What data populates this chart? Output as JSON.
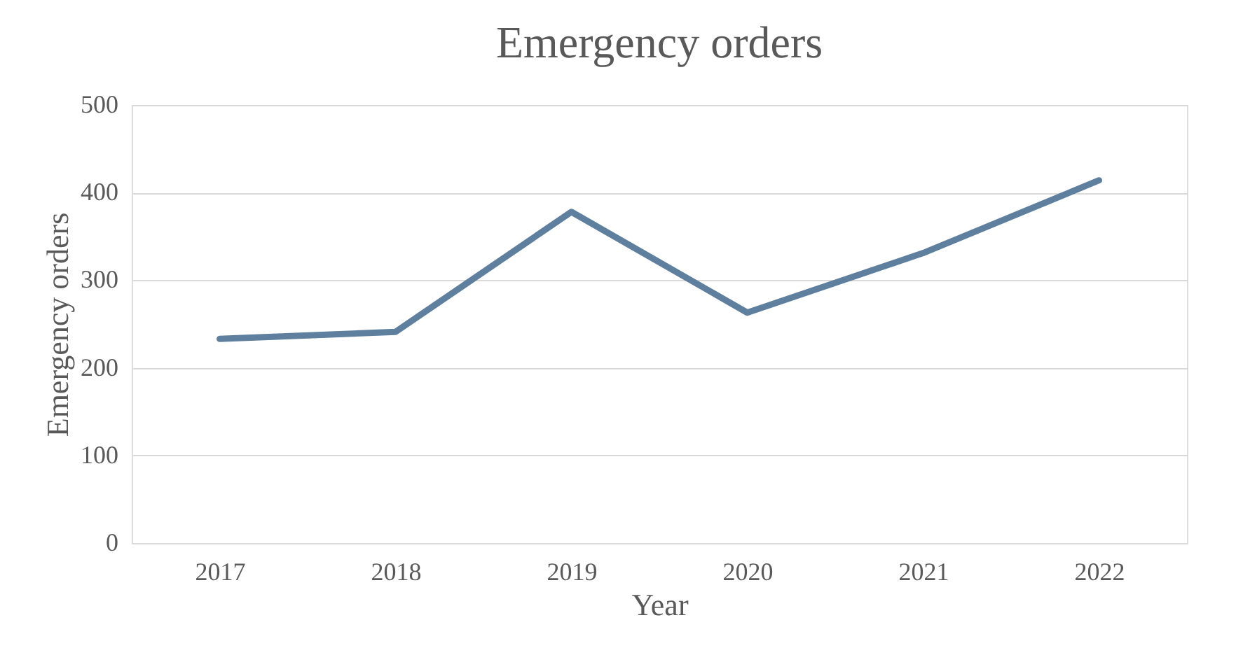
{
  "chart_data": {
    "type": "line",
    "title": "Emergency orders",
    "xlabel": "Year",
    "ylabel": "Emergency orders",
    "categories": [
      "2017",
      "2018",
      "2019",
      "2020",
      "2021",
      "2022"
    ],
    "series": [
      {
        "color": "#5e7f9e",
        "values": [
          233,
          241,
          378,
          263,
          331,
          414
        ]
      }
    ],
    "ylim": [
      0,
      500
    ],
    "yticks": [
      0,
      100,
      200,
      300,
      400,
      500
    ],
    "grid": "y",
    "marker": "none",
    "line_style": "solid"
  }
}
